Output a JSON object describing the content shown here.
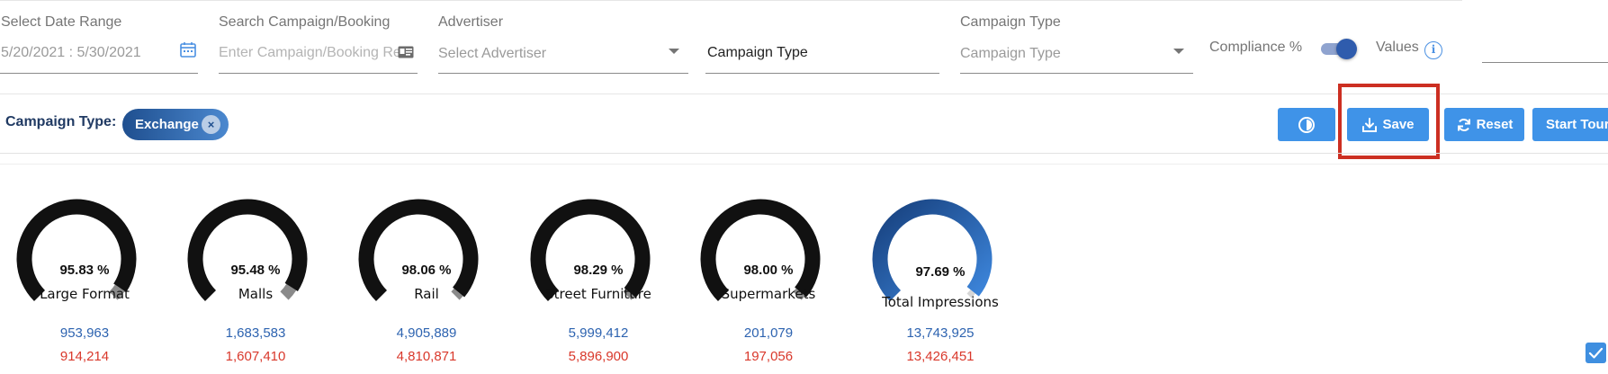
{
  "filters": {
    "date_range": {
      "label": "Select Date Range",
      "value": "5/20/2021 : 5/30/2021",
      "icon": "calendar-icon"
    },
    "search": {
      "label": "Search Campaign/Booking",
      "placeholder": "Enter Campaign/Booking Re",
      "icon": "id-card-icon"
    },
    "advertiser": {
      "label": "Advertiser",
      "placeholder": "Select Advertiser"
    },
    "campaign_type_input": {
      "value": "Campaign Type"
    },
    "campaign_type": {
      "label": "Campaign Type",
      "placeholder": "Campaign Type"
    },
    "compliance": {
      "label": "Compliance %",
      "on": true
    },
    "values": {
      "label": "Values",
      "icon": "info-icon"
    }
  },
  "chip_row": {
    "label": "Campaign Type:",
    "chip": "Exchange",
    "chip_close": "×"
  },
  "buttons": {
    "chart": {
      "icon": "pie-chart-icon"
    },
    "save": {
      "label": "Save",
      "icon": "download-icon"
    },
    "reset": {
      "label": "Reset",
      "icon": "refresh-icon"
    },
    "tour": {
      "label": "Start Tour"
    }
  },
  "colors": {
    "primary_button": "#3f93e8",
    "chip": "#2e62a8",
    "highlight": "#cc2f22",
    "gauge_dark": "#111111",
    "gauge_total": "#2a64b4",
    "value_blue": "#2d63b0",
    "value_red": "#d9382b"
  },
  "gauges": [
    {
      "percent_text": "95.83 %",
      "percent": 95.83,
      "name": "Large Format",
      "value1": "953,963",
      "value2": "914,214"
    },
    {
      "percent_text": "95.48 %",
      "percent": 95.48,
      "name": "Malls",
      "value1": "1,683,583",
      "value2": "1,607,410"
    },
    {
      "percent_text": "98.06 %",
      "percent": 98.06,
      "name": "Rail",
      "value1": "4,905,889",
      "value2": "4,810,871"
    },
    {
      "percent_text": "98.29 %",
      "percent": 98.29,
      "name": "Street Furniture",
      "value1": "5,999,412",
      "value2": "5,896,900"
    },
    {
      "percent_text": "98.00 %",
      "percent": 98.0,
      "name": "Supermarkets",
      "value1": "201,079",
      "value2": "197,056"
    },
    {
      "percent_text": "97.69 %",
      "percent": 97.69,
      "name": "Total Impressions",
      "value1": "13,743,925",
      "value2": "13,426,451"
    }
  ]
}
